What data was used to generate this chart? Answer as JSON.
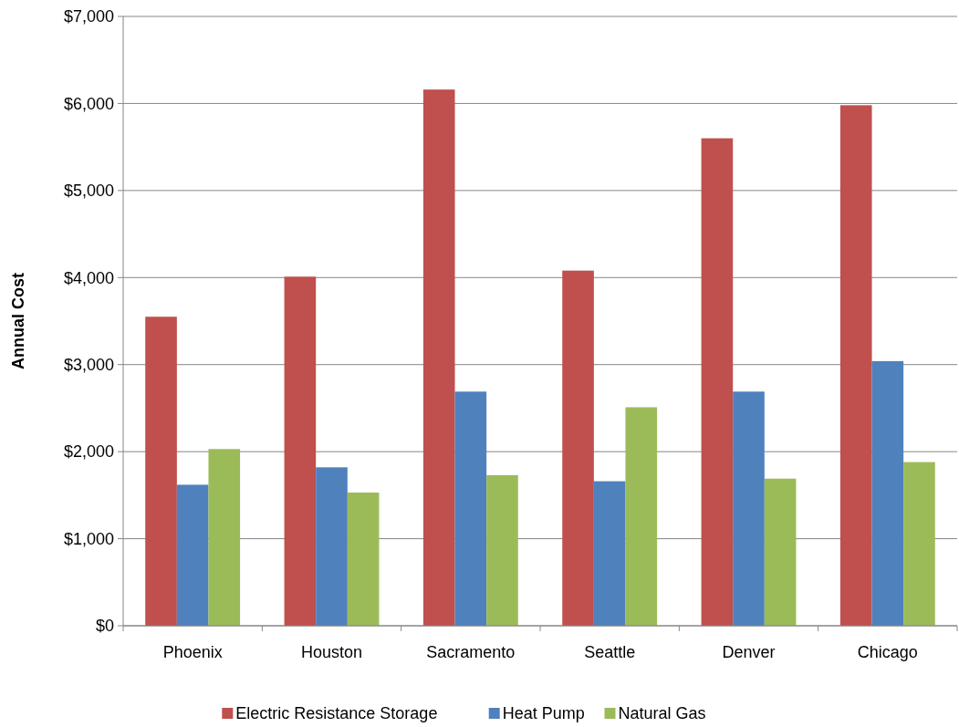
{
  "chart_data": {
    "type": "bar",
    "ylabel": "Annual Cost",
    "categories": [
      "Phoenix",
      "Houston",
      "Sacramento",
      "Seattle",
      "Denver",
      "Chicago"
    ],
    "series": [
      {
        "name": "Electric Resistance Storage",
        "color": "#c0504d",
        "values": [
          3550,
          4010,
          6160,
          4080,
          5600,
          5980
        ]
      },
      {
        "name": "Heat Pump",
        "color": "#4f81bd",
        "values": [
          1620,
          1820,
          2690,
          1660,
          2690,
          3040
        ]
      },
      {
        "name": "Natural Gas",
        "color": "#9bbb59",
        "values": [
          2030,
          1530,
          1730,
          2510,
          1690,
          1880
        ]
      }
    ],
    "ylim": [
      0,
      7000
    ],
    "yticks": [
      {
        "value": 0,
        "label": "$0"
      },
      {
        "value": 1000,
        "label": "$1,000"
      },
      {
        "value": 2000,
        "label": "$2,000"
      },
      {
        "value": 3000,
        "label": "$3,000"
      },
      {
        "value": 4000,
        "label": "$4,000"
      },
      {
        "value": 5000,
        "label": "$5,000"
      },
      {
        "value": 6000,
        "label": "$6,000"
      },
      {
        "value": 7000,
        "label": "$7,000"
      }
    ],
    "grid": "y",
    "legend": "bottom"
  }
}
